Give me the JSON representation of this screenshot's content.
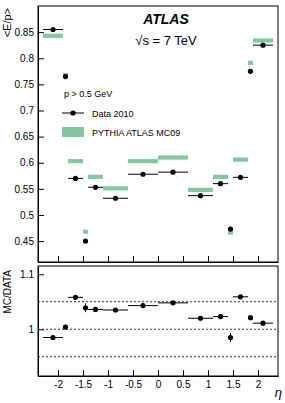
{
  "chart_data": [
    {
      "type": "scatter",
      "title": "ATLAS",
      "subtitle": "√s = 7 TeV",
      "annotations": [
        "p > 0.5 GeV"
      ],
      "y_label": "<E/p>",
      "bins": [
        -2.3,
        -1.9,
        -1.8,
        -1.5,
        -1.4,
        -1.1,
        -0.6,
        0,
        0.6,
        1.1,
        1.4,
        1.5,
        1.8,
        1.9,
        2.3
      ],
      "xlim": [
        -2.4,
        2.4
      ],
      "xticks": [
        -2,
        -1.5,
        -1,
        -0.5,
        0,
        0.5,
        1,
        1.5,
        2
      ],
      "ylim": [
        0.41,
        0.9
      ],
      "yticks": [
        0.45,
        0.5,
        0.55,
        0.6,
        0.65,
        0.7,
        0.75,
        0.8,
        0.85
      ],
      "tick_labels": "y",
      "legend": "upper left",
      "series": [
        {
          "name": "Data 2010",
          "type": "scatter",
          "marker": "circle",
          "color": "#000000",
          "values": [
            0.855,
            0.765,
            0.57,
            0.45,
            0.553,
            0.532,
            0.578,
            0.582,
            0.537,
            0.56,
            0.473,
            0.572,
            0.775,
            0.825
          ]
        },
        {
          "name": "PYTHIA ATLAS MC09",
          "type": "bar",
          "marker": "box",
          "color": "#7fc8a0",
          "values": [
            0.843,
            0.768,
            0.603,
            0.468,
            0.573,
            0.551,
            0.603,
            0.61,
            0.548,
            0.573,
            0.466,
            0.606,
            0.791,
            0.834
          ],
          "errors": [
            0.004,
            0.004,
            0.004,
            0.004,
            0.004,
            0.004,
            0.004,
            0.004,
            0.004,
            0.004,
            0.004,
            0.004,
            0.004,
            0.004
          ]
        }
      ]
    },
    {
      "type": "scatter",
      "y_label": "MC/DATA",
      "x_label": "η",
      "bins": [
        -2.3,
        -1.9,
        -1.8,
        -1.5,
        -1.4,
        -1.1,
        -0.6,
        0,
        0.6,
        1.1,
        1.4,
        1.5,
        1.8,
        1.9,
        2.3
      ],
      "xlim": [
        -2.4,
        2.4
      ],
      "xticks": [
        -2,
        -1.5,
        -1,
        -0.5,
        0,
        0.5,
        1,
        1.5,
        2
      ],
      "ylim": [
        0.915,
        1.115
      ],
      "yticks": [
        1,
        1.1
      ],
      "reference_lines": [
        0.95,
        1,
        1.05
      ],
      "marker": "circle",
      "color": "#000000",
      "values": [
        0.985,
        1.004,
        1.058,
        1.039,
        1.036,
        1.035,
        1.043,
        1.048,
        1.02,
        1.023,
        0.985,
        1.059,
        1.021,
        1.011
      ],
      "errors": [
        0.004,
        0.004,
        0.004,
        0.008,
        0.004,
        0.002,
        0.002,
        0.002,
        0.002,
        0.004,
        0.008,
        0.004,
        0.004,
        0.004
      ]
    }
  ]
}
